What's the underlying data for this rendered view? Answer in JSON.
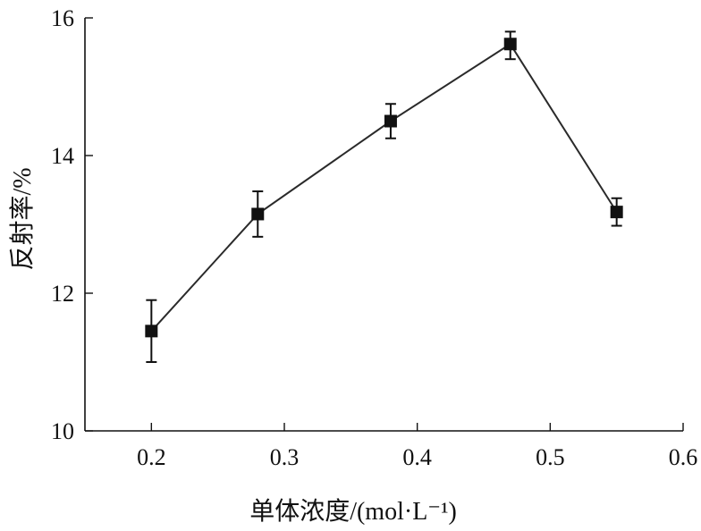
{
  "chart_data": {
    "type": "line",
    "title": "",
    "xlabel": "单体浓度/(mol·L⁻¹)",
    "ylabel": "反射率/%",
    "xlim": [
      0.15,
      0.6
    ],
    "ylim": [
      10,
      16
    ],
    "xticks": [
      0.2,
      0.3,
      0.4,
      0.5,
      0.6
    ],
    "xtick_labels": [
      "0.2",
      "0.3",
      "0.4",
      "0.5",
      "0.6"
    ],
    "yticks": [
      10,
      12,
      14,
      16
    ],
    "ytick_labels": [
      "10",
      "12",
      "14",
      "16"
    ],
    "grid": false,
    "series": [
      {
        "x": [
          0.2,
          0.28,
          0.38,
          0.47,
          0.55
        ],
        "y": [
          11.45,
          13.15,
          14.5,
          15.62,
          13.18
        ],
        "err_low": [
          0.45,
          0.33,
          0.25,
          0.22,
          0.2
        ],
        "err_high": [
          0.45,
          0.33,
          0.25,
          0.18,
          0.2
        ],
        "marker": "square",
        "color": "#111111"
      }
    ]
  }
}
